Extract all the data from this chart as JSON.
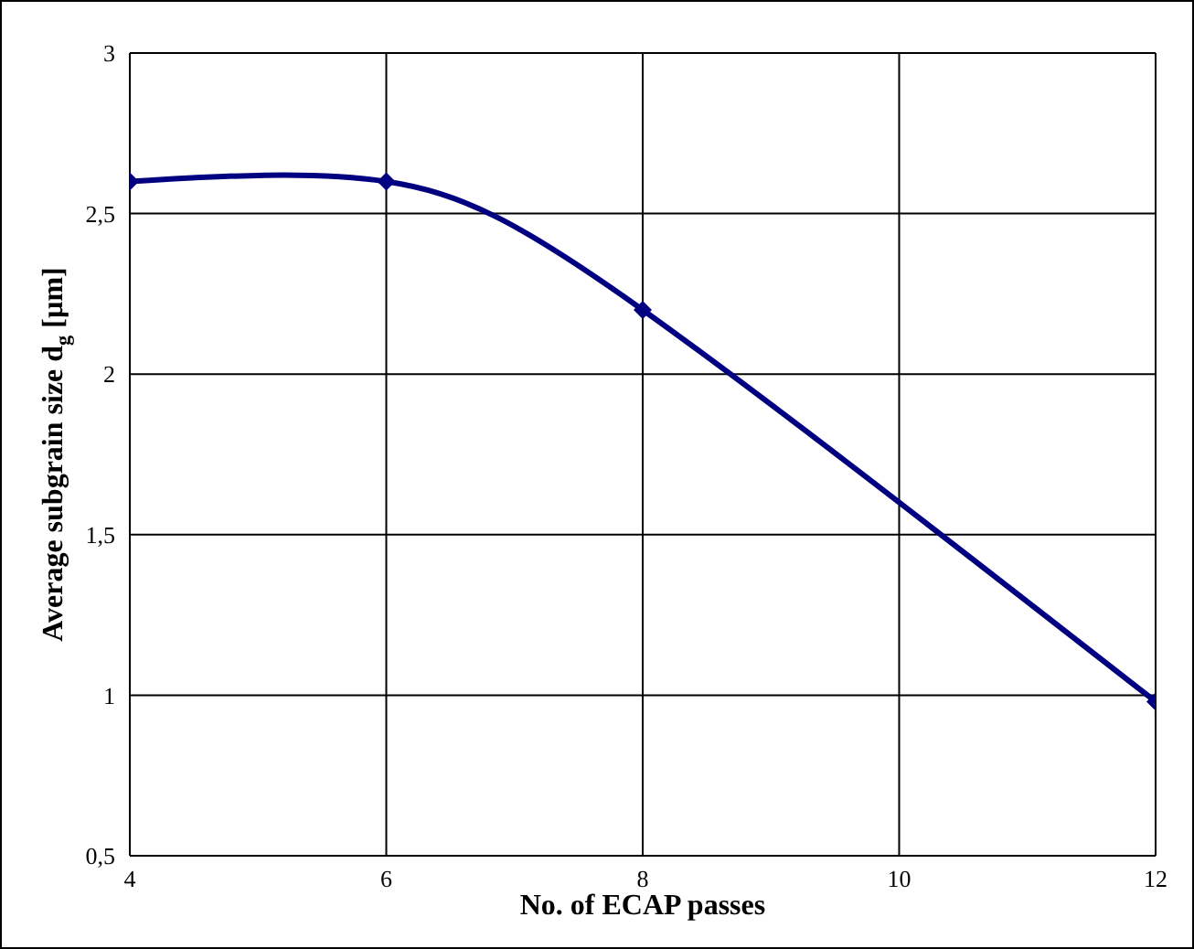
{
  "chart_data": {
    "type": "line",
    "xlabel": "No. of ECAP passes",
    "ylabel": "Average subgrain size d$_{g}$ [µm]",
    "x": [
      4,
      6,
      8,
      12
    ],
    "series": [
      {
        "color": "#000080",
        "values": [
          2.6,
          2.6,
          2.2,
          0.98
        ]
      }
    ],
    "xlim": [
      4,
      12
    ],
    "xticks": [
      4,
      6,
      8,
      10,
      12
    ],
    "ylim": [
      0.5,
      3
    ],
    "yticks": [
      {
        "value": 0.5,
        "label": "0,5"
      },
      1,
      {
        "value": 1.5,
        "label": "1,5"
      },
      2,
      {
        "value": 2.5,
        "label": "2,5"
      },
      3
    ],
    "grid": true,
    "marker": "diamond",
    "line_style": "solid",
    "legend": false
  }
}
